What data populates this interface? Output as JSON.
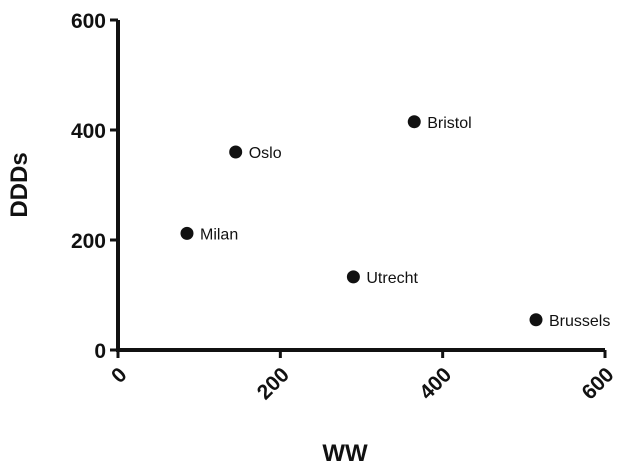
{
  "chart_data": {
    "type": "scatter",
    "title": "",
    "xlabel": "WW",
    "ylabel": "DDDs",
    "xlim": [
      0,
      600
    ],
    "ylim": [
      0,
      600
    ],
    "xticks": [
      0,
      200,
      400,
      600
    ],
    "yticks": [
      0,
      200,
      400,
      600
    ],
    "grid": false,
    "legend": "none",
    "marker_color": "#111111",
    "points": [
      {
        "label": "Oslo",
        "x": 145,
        "y": 360
      },
      {
        "label": "Bristol",
        "x": 365,
        "y": 415
      },
      {
        "label": "Milan",
        "x": 85,
        "y": 212
      },
      {
        "label": "Utrecht",
        "x": 290,
        "y": 133
      },
      {
        "label": "Brussels",
        "x": 515,
        "y": 55
      }
    ]
  }
}
